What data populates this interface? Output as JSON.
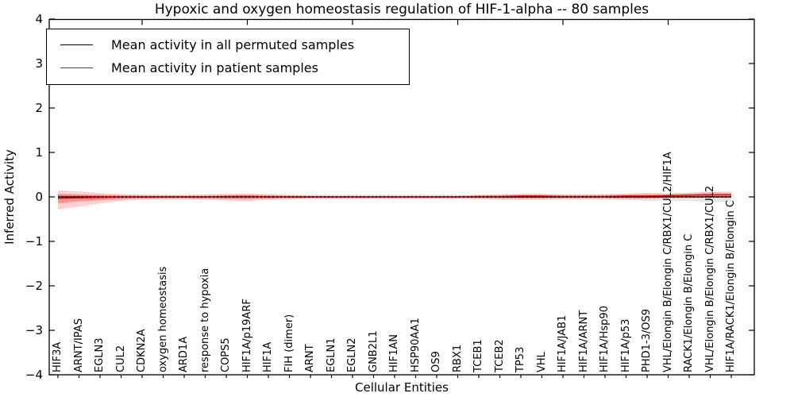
{
  "chart_data": {
    "type": "line",
    "title": "Hypoxic and oxygen homeostasis regulation of HIF-1-alpha -- 80 samples",
    "xlabel": "Cellular Entities",
    "ylabel": "Inferred Activity",
    "ylim": [
      -4,
      4
    ],
    "grid": false,
    "legend_position": "upper left",
    "y_tick_labels": [
      "4",
      "3",
      "2",
      "1",
      "0",
      "−1",
      "−2",
      "−3",
      "−4"
    ],
    "y_tick_values": [
      4,
      3,
      2,
      1,
      0,
      -1,
      -2,
      -3,
      -4
    ],
    "top_tick_indices": [
      4,
      9,
      14,
      19,
      24,
      29
    ],
    "categories": [
      "HIF3A",
      "ARNT/IPAS",
      "EGLN3",
      "CUL2",
      "CDKN2A",
      "oxygen homeostasis",
      "ARD1A",
      "response to hypoxia",
      "COPS5",
      "HIF1A/p19ARF",
      "HIF1A",
      "FIH (dimer)",
      "ARNT",
      "EGLN1",
      "EGLN2",
      "GNB2L1",
      "HIF1AN",
      "HSP90AA1",
      "OS9",
      "RBX1",
      "TCEB1",
      "TCEB2",
      "TP53",
      "VHL",
      "HIF1A/JAB1",
      "HIF1A/ARNT",
      "HIF1A/Hsp90",
      "HIF1A/p53",
      "PHD1-3/OS9",
      "VHL/Elongin B/Elongin C/RBX1/CUL2/HIF1A",
      "RACK1/Elongin B/Elongin C",
      "VHL/Elongin B/Elongin C/RBX1/CUL2",
      "HIF1A/RACK1/Elongin B/Elongin C"
    ],
    "series": [
      {
        "name": "Mean activity in all permuted samples",
        "color": "#000000",
        "line_style": "solid-with-dotted-overlay",
        "band_color": "rgba(0,0,0,0.10)",
        "values": [
          0,
          0,
          0,
          0,
          0,
          0,
          0,
          0,
          0,
          0,
          0,
          0,
          0,
          0,
          0,
          0,
          0,
          0,
          0,
          0,
          0,
          0,
          0,
          0,
          0,
          0,
          0,
          0,
          0,
          0,
          0,
          0,
          0
        ],
        "band_upper": [
          0.05,
          0.05,
          0.05,
          0.05,
          0.05,
          0.05,
          0.05,
          0.05,
          0.05,
          0.05,
          0.05,
          0.05,
          0.05,
          0.05,
          0.05,
          0.05,
          0.05,
          0.05,
          0.05,
          0.05,
          0.05,
          0.06,
          0.07,
          0.07,
          0.06,
          0.06,
          0.06,
          0.07,
          0.09,
          0.08,
          0.09,
          0.12,
          0.11
        ],
        "band_lower": [
          -0.05,
          -0.05,
          -0.05,
          -0.05,
          -0.05,
          -0.05,
          -0.05,
          -0.05,
          -0.05,
          -0.05,
          -0.05,
          -0.05,
          -0.05,
          -0.05,
          -0.05,
          -0.05,
          -0.05,
          -0.05,
          -0.05,
          -0.05,
          -0.05,
          -0.06,
          -0.07,
          -0.07,
          -0.06,
          -0.06,
          -0.06,
          -0.07,
          -0.09,
          -0.08,
          -0.09,
          -0.12,
          -0.11
        ]
      },
      {
        "name": "Mean activity in patient samples",
        "color": "#ff0000",
        "line_style": "solid",
        "band_color": "rgba(255,0,0,0.18)",
        "band_inner_color": "rgba(255,0,0,0.30)",
        "values": [
          -0.03,
          -0.02,
          -0.01,
          0,
          0,
          0,
          0,
          0,
          0.01,
          0.01,
          0,
          0,
          0,
          0,
          0,
          0,
          0,
          0,
          0,
          0,
          0.01,
          0.01,
          0.02,
          0.02,
          0.01,
          0.01,
          0.01,
          0.02,
          0.02,
          0.03,
          0.04,
          0.05,
          0.05
        ],
        "band_upper": [
          0.15,
          0.12,
          0.09,
          0.06,
          0.05,
          0.04,
          0.04,
          0.05,
          0.07,
          0.08,
          0.06,
          0.04,
          0.03,
          0.03,
          0.03,
          0.03,
          0.03,
          0.03,
          0.03,
          0.03,
          0.04,
          0.05,
          0.06,
          0.06,
          0.05,
          0.05,
          0.06,
          0.07,
          0.08,
          0.07,
          0.09,
          0.11,
          0.1
        ],
        "band_lower": [
          -0.28,
          -0.22,
          -0.15,
          -0.09,
          -0.06,
          -0.05,
          -0.05,
          -0.06,
          -0.08,
          -0.09,
          -0.06,
          -0.04,
          -0.03,
          -0.03,
          -0.03,
          -0.03,
          -0.03,
          -0.03,
          -0.03,
          -0.03,
          -0.04,
          -0.05,
          -0.05,
          -0.05,
          -0.04,
          -0.04,
          -0.04,
          -0.05,
          -0.05,
          -0.03,
          -0.02,
          -0.02,
          -0.02
        ],
        "band_inner_upper": [
          0.07,
          0.05,
          0.04,
          0.03,
          0.02,
          0.02,
          0.02,
          0.02,
          0.03,
          0.04,
          0.03,
          0.02,
          0.015,
          0.015,
          0.015,
          0.015,
          0.015,
          0.015,
          0.015,
          0.015,
          0.02,
          0.02,
          0.03,
          0.03,
          0.02,
          0.02,
          0.03,
          0.035,
          0.04,
          0.04,
          0.05,
          0.06,
          0.06
        ],
        "band_inner_lower": [
          -0.14,
          -0.1,
          -0.07,
          -0.04,
          -0.03,
          -0.02,
          -0.02,
          -0.03,
          -0.04,
          -0.045,
          -0.03,
          -0.02,
          -0.015,
          -0.015,
          -0.015,
          -0.015,
          -0.015,
          -0.015,
          -0.015,
          -0.015,
          -0.02,
          -0.02,
          -0.025,
          -0.025,
          -0.02,
          -0.02,
          -0.02,
          -0.025,
          -0.025,
          -0.01,
          0.0,
          0.005,
          0.01
        ]
      }
    ]
  },
  "legend": {
    "entries": [
      {
        "label": "Mean activity in all permuted samples",
        "color": "#000000"
      },
      {
        "label": "Mean activity in patient samples",
        "color": "#ff0000"
      }
    ]
  },
  "colors": {
    "spine": "#000000",
    "background": "#ffffff",
    "permuted_line": "#000000",
    "patient_line": "#ff0000"
  }
}
